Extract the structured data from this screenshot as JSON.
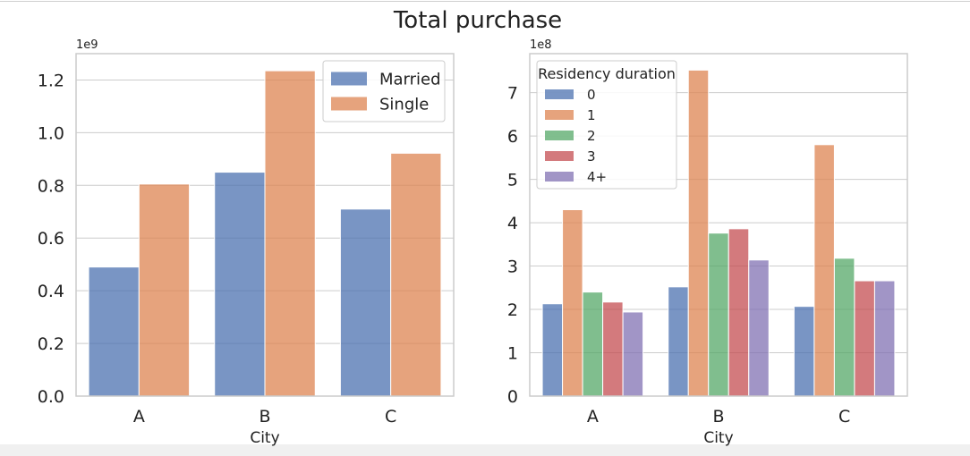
{
  "figure": {
    "title": "Total purchase"
  },
  "chart_data": [
    {
      "type": "bar",
      "categories": [
        "A",
        "B",
        "C"
      ],
      "xlabel": "City",
      "ylabel": "",
      "offset_text": "1e9",
      "ylim": [
        0,
        1.3
      ],
      "yticks": [
        0.0,
        0.2,
        0.4,
        0.6,
        0.8,
        1.0,
        1.2
      ],
      "ytick_labels": [
        "0.0",
        "0.2",
        "0.4",
        "0.6",
        "0.8",
        "1.0",
        "1.2"
      ],
      "grid": "horizontal",
      "legend": {
        "title": "",
        "placement": "top-right"
      },
      "series": [
        {
          "name": "Married",
          "color": "#4c72b0",
          "values": [
            0.49,
            0.85,
            0.71
          ]
        },
        {
          "name": "Single",
          "color": "#dd8452",
          "values": [
            0.805,
            1.235,
            0.922
          ]
        }
      ]
    },
    {
      "type": "bar",
      "categories": [
        "A",
        "B",
        "C"
      ],
      "xlabel": "City",
      "ylabel": "",
      "offset_text": "1e8",
      "ylim": [
        0,
        7.9
      ],
      "yticks": [
        0,
        1,
        2,
        3,
        4,
        5,
        6,
        7
      ],
      "ytick_labels": [
        "0",
        "1",
        "2",
        "3",
        "4",
        "5",
        "6",
        "7"
      ],
      "grid": "horizontal",
      "legend": {
        "title": "Residency duration",
        "placement": "top-left"
      },
      "series": [
        {
          "name": "0",
          "color": "#4c72b0",
          "values": [
            2.13,
            2.52,
            2.07
          ]
        },
        {
          "name": "1",
          "color": "#dd8452",
          "values": [
            4.3,
            7.52,
            5.8
          ]
        },
        {
          "name": "2",
          "color": "#55a868",
          "values": [
            2.4,
            3.76,
            3.18
          ]
        },
        {
          "name": "3",
          "color": "#c44e52",
          "values": [
            2.17,
            3.86,
            2.66
          ]
        },
        {
          "name": "4+",
          "color": "#8172b3",
          "values": [
            1.94,
            3.14,
            2.66
          ]
        }
      ]
    }
  ]
}
